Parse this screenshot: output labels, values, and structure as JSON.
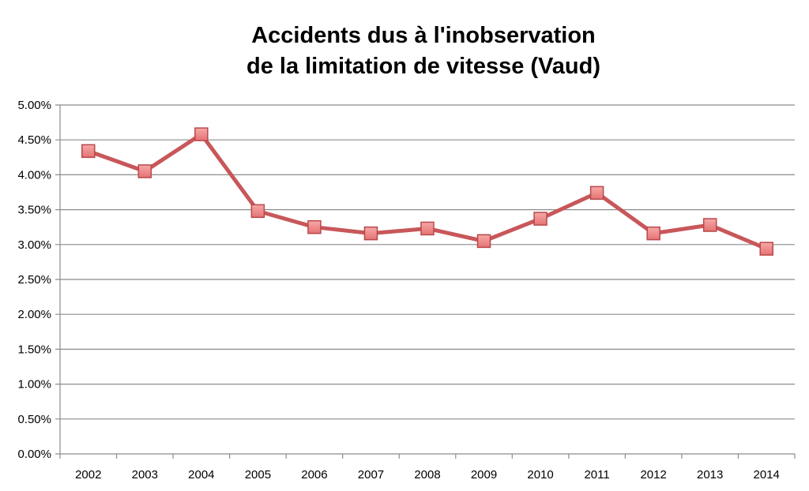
{
  "chart_data": {
    "type": "line",
    "title_lines": [
      "Accidents dus à l'inobservation",
      "de la limitation de vitesse (Vaud)"
    ],
    "xlabel": "",
    "ylabel": "",
    "categories": [
      "2002",
      "2003",
      "2004",
      "2005",
      "2006",
      "2007",
      "2008",
      "2009",
      "2010",
      "2011",
      "2012",
      "2013",
      "2014"
    ],
    "series": [
      {
        "values": [
          4.34,
          4.05,
          4.58,
          3.48,
          3.25,
          3.16,
          3.23,
          3.05,
          3.37,
          3.74,
          3.16,
          3.28,
          2.94
        ]
      }
    ],
    "ylim": [
      0,
      5
    ],
    "y_ticks": [
      "0.00%",
      "0.50%",
      "1.00%",
      "1.50%",
      "2.00%",
      "2.50%",
      "3.00%",
      "3.50%",
      "4.00%",
      "4.50%",
      "5.00%"
    ],
    "y_tick_values": [
      0,
      0.5,
      1,
      1.5,
      2,
      2.5,
      3,
      3.5,
      4,
      4.5,
      5
    ],
    "grid": true,
    "legend": "none",
    "colors": {
      "line": "#c8575a",
      "marker_fill": "#f28b8b",
      "marker_stroke": "#b9484b",
      "grid": "#8c8c8c",
      "axis": "#8c8c8c"
    }
  }
}
